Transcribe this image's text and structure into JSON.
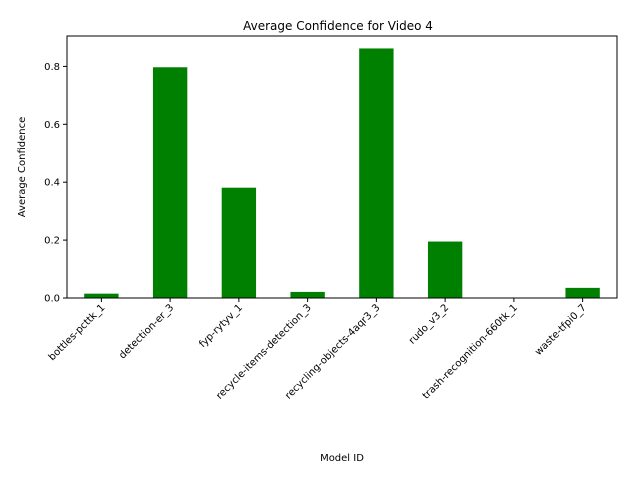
{
  "chart_data": {
    "type": "bar",
    "title": "Average Confidence for Video 4",
    "xlabel": "Model ID",
    "ylabel": "Average Confidence",
    "categories": [
      "bottles-pcttk_1",
      "detection-er_3",
      "fyp-rytyv_1",
      "recycle-items-detection_3",
      "recycling-objects-4aqr3_3",
      "rudo_v3_2",
      "trash-recognition-660tk_1",
      "waste-tfpi0_7"
    ],
    "values": [
      0.015,
      0.797,
      0.381,
      0.021,
      0.862,
      0.195,
      0.0,
      0.035
    ],
    "ylim": [
      0,
      0.905
    ],
    "yticks": [
      0.0,
      0.2,
      0.4,
      0.6,
      0.8
    ],
    "ytick_labels": [
      "0.0",
      "0.2",
      "0.4",
      "0.6",
      "0.8"
    ],
    "bar_color": "#008000",
    "grid": false,
    "legend": "none"
  }
}
